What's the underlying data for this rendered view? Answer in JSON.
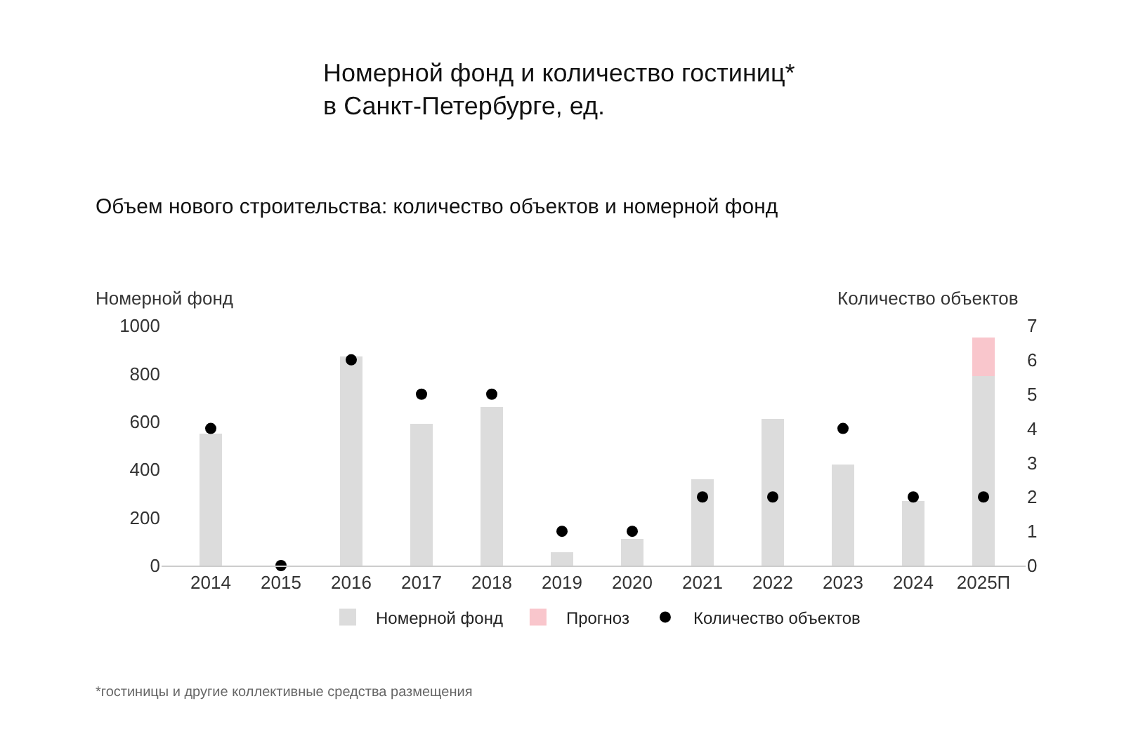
{
  "chart_data": {
    "type": "bar",
    "title": "Номерной фонд и количество гостиниц*\nв Санкт-Петербурге, ед.",
    "subtitle": "Объем нового строительства: количество объектов и номерной фонд",
    "ylabel": "Номерной фонд",
    "y2label": "Количество объектов",
    "categories": [
      "2014",
      "2015",
      "2016",
      "2017",
      "2018",
      "2019",
      "2020",
      "2021",
      "2022",
      "2023",
      "2024",
      "2025П"
    ],
    "stacked": true,
    "series": [
      {
        "name": "Номерной фонд",
        "color": "#dcdcdc",
        "values": [
          550,
          0,
          870,
          590,
          660,
          55,
          110,
          360,
          610,
          420,
          270,
          790
        ]
      },
      {
        "name": "Прогноз",
        "type": "bar",
        "color": "#f9c6cc",
        "values": [
          null,
          null,
          null,
          null,
          null,
          null,
          null,
          null,
          null,
          null,
          null,
          160
        ]
      },
      {
        "name": "Количество объектов",
        "type": "scatter",
        "axis": "y2",
        "color": "#000000",
        "marker": "circle",
        "values": [
          4,
          0,
          6,
          5,
          5,
          1,
          1,
          2,
          2,
          4,
          2,
          2
        ]
      }
    ],
    "ylim": [
      0,
      1000
    ],
    "yticks": [
      0,
      200,
      400,
      600,
      800,
      1000
    ],
    "y2lim": [
      0,
      7
    ],
    "y2ticks": [
      0,
      1,
      2,
      3,
      4,
      5,
      6,
      7
    ],
    "legend": "bottom",
    "annotations": [
      "*гостиницы и другие коллективные средства размещения"
    ]
  }
}
